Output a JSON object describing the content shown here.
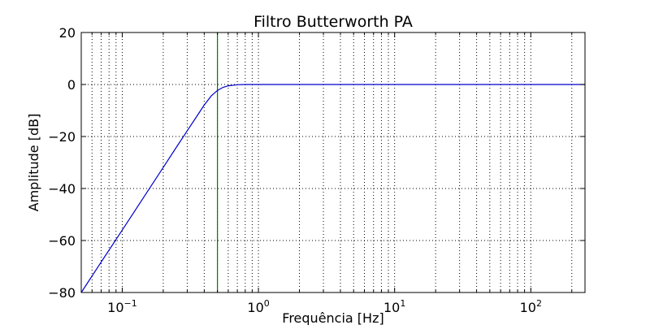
{
  "chart_data": {
    "type": "line",
    "title": "Filtro Butterworth PA",
    "xlabel": "Frequência [Hz]",
    "ylabel": "Amplitude [dB]",
    "x_scale": "log",
    "xlim": [
      0.05,
      250
    ],
    "ylim": [
      -80,
      20
    ],
    "x_ticks": [
      {
        "base": "10",
        "exp": "−1",
        "value": 0.1
      },
      {
        "base": "10",
        "exp": "0",
        "value": 1
      },
      {
        "base": "10",
        "exp": "1",
        "value": 10
      },
      {
        "base": "10",
        "exp": "2",
        "value": 100
      }
    ],
    "y_ticks": [
      {
        "label": "20",
        "value": 20
      },
      {
        "label": "0",
        "value": 0
      },
      {
        "label": "−20",
        "value": -20
      },
      {
        "label": "−40",
        "value": -40
      },
      {
        "label": "−60",
        "value": -60
      },
      {
        "label": "−80",
        "value": -80
      }
    ],
    "grid": true,
    "grid_style": "dotted",
    "series": [
      {
        "color": "#0000cc",
        "points": [
          [
            0.05,
            -80
          ],
          [
            0.07,
            -68.3
          ],
          [
            0.1,
            -56.0
          ],
          [
            0.15,
            -41.9
          ],
          [
            0.2,
            -31.9
          ],
          [
            0.25,
            -24.1
          ],
          [
            0.3,
            -17.8
          ],
          [
            0.35,
            -12.5
          ],
          [
            0.4,
            -7.9
          ],
          [
            0.45,
            -4.4
          ],
          [
            0.5,
            -2.3
          ],
          [
            0.55,
            -1.1
          ],
          [
            0.6,
            -0.5
          ],
          [
            0.7,
            -0.1
          ],
          [
            0.8,
            0
          ],
          [
            1,
            0
          ],
          [
            10,
            0
          ],
          [
            100,
            0
          ],
          [
            250,
            0
          ]
        ]
      }
    ],
    "vlines": [
      {
        "x": 0.5,
        "color": "#007f00"
      }
    ]
  }
}
